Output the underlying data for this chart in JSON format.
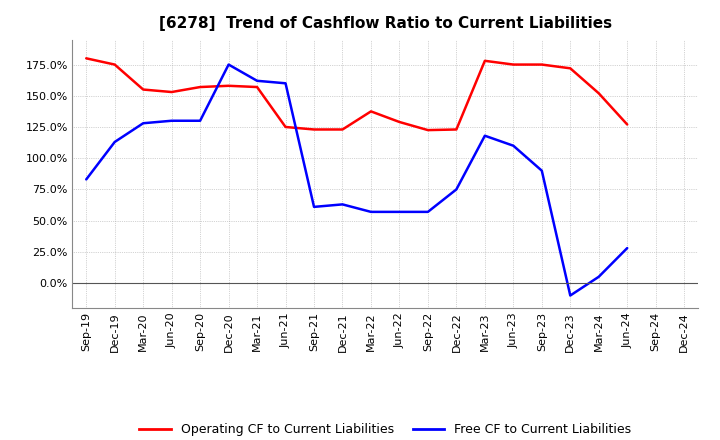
{
  "title": "[6278]  Trend of Cashflow Ratio to Current Liabilities",
  "x_labels": [
    "Sep-19",
    "Dec-19",
    "Mar-20",
    "Jun-20",
    "Sep-20",
    "Dec-20",
    "Mar-21",
    "Jun-21",
    "Sep-21",
    "Dec-21",
    "Mar-22",
    "Jun-22",
    "Sep-22",
    "Dec-22",
    "Mar-23",
    "Jun-23",
    "Sep-23",
    "Dec-23",
    "Mar-24",
    "Jun-24",
    "Sep-24",
    "Dec-24"
  ],
  "operating_cf": [
    1.8,
    1.75,
    1.55,
    1.53,
    1.57,
    1.58,
    1.57,
    1.25,
    1.23,
    1.23,
    1.375,
    1.29,
    1.225,
    1.23,
    1.78,
    1.75,
    1.75,
    1.72,
    1.52,
    1.27,
    null,
    null
  ],
  "free_cf": [
    0.83,
    1.13,
    1.28,
    1.3,
    1.3,
    1.75,
    1.62,
    1.6,
    0.61,
    0.63,
    0.57,
    0.57,
    0.57,
    0.75,
    1.18,
    1.1,
    0.9,
    -0.1,
    0.05,
    0.28,
    null,
    null
  ],
  "operating_color": "#ff0000",
  "free_color": "#0000ff",
  "ylim_min": -0.2,
  "ylim_max": 1.95,
  "yticks": [
    0.0,
    0.25,
    0.5,
    0.75,
    1.0,
    1.25,
    1.5,
    1.75
  ],
  "background_color": "#ffffff",
  "grid_color": "#aaaaaa",
  "legend_op": "Operating CF to Current Liabilities",
  "legend_free": "Free CF to Current Liabilities",
  "title_fontsize": 11,
  "tick_fontsize": 8,
  "legend_fontsize": 9
}
